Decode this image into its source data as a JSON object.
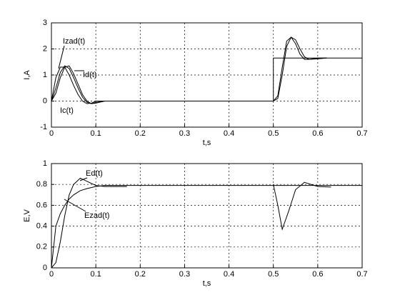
{
  "chart_data": [
    {
      "type": "line",
      "xlabel": "t,s",
      "ylabel": "I,A",
      "x": [
        0,
        0.01,
        0.02,
        0.03,
        0.04,
        0.05,
        0.06,
        0.07,
        0.08,
        0.09,
        0.1,
        0.12,
        0.17,
        0.3,
        0.5,
        0.5,
        0.51,
        0.52,
        0.53,
        0.54,
        0.55,
        0.56,
        0.57,
        0.58,
        0.6,
        0.62,
        0.7
      ],
      "series": [
        {
          "name": "Izad(t)",
          "color": "#000000",
          "values": [
            0,
            0.9,
            1.3,
            1.3,
            1.0,
            0.6,
            0.25,
            0.0,
            -0.1,
            -0.08,
            0,
            0,
            0,
            0,
            0,
            1.65,
            1.65,
            1.65,
            1.65,
            1.65,
            1.65,
            1.65,
            1.65,
            1.65,
            1.65,
            1.65,
            1.65
          ]
        },
        {
          "name": "Id(t)",
          "color": "#000000",
          "values": [
            0,
            0.5,
            1.1,
            1.35,
            1.25,
            0.9,
            0.5,
            0.15,
            -0.05,
            -0.1,
            -0.05,
            0,
            0,
            0,
            0,
            0,
            0.2,
            1.3,
            2.3,
            2.45,
            2.2,
            1.8,
            1.6,
            1.6,
            1.65,
            1.65,
            null
          ]
        },
        {
          "name": "Ic(t)",
          "color": "#000000",
          "values": [
            0,
            0.3,
            0.9,
            1.3,
            1.35,
            1.05,
            0.65,
            0.25,
            0,
            -0.1,
            -0.08,
            0,
            0,
            0,
            0,
            0,
            0.1,
            1.0,
            2.1,
            2.45,
            2.35,
            2.0,
            1.7,
            1.6,
            1.62,
            1.65,
            null
          ]
        }
      ],
      "xlim": [
        0,
        0.7
      ],
      "xticks": [
        0,
        0.1,
        0.2,
        0.3,
        0.4,
        0.5,
        0.6,
        0.7
      ],
      "ylim": [
        -1,
        3
      ],
      "yticks": [
        -1,
        0,
        1,
        2,
        3
      ],
      "grid": true
    },
    {
      "type": "line",
      "xlabel": "t,s",
      "ylabel": "E,V",
      "x": [
        0,
        0.01,
        0.02,
        0.03,
        0.04,
        0.05,
        0.065,
        0.08,
        0.1,
        0.12,
        0.17,
        0.3,
        0.5,
        0.51,
        0.52,
        0.535,
        0.55,
        0.57,
        0.6,
        0.63,
        0.7
      ],
      "series": [
        {
          "name": "Ezad(t)",
          "color": "#000000",
          "values": [
            0,
            0.4,
            0.52,
            0.6,
            0.66,
            0.7,
            0.74,
            0.76,
            0.78,
            0.79,
            0.79,
            0.79,
            0.79,
            0.79,
            0.79,
            0.79,
            0.79,
            0.79,
            0.79,
            0.79,
            0.79
          ]
        },
        {
          "name": "Ed(t)",
          "color": "#000000",
          "values": [
            0,
            0.05,
            0.25,
            0.5,
            0.7,
            0.8,
            0.86,
            0.83,
            0.79,
            0.78,
            0.78,
            null,
            0.8,
            0.6,
            0.37,
            0.55,
            0.75,
            0.82,
            0.78,
            0.775,
            null
          ]
        }
      ],
      "xlim": [
        0,
        0.7
      ],
      "xticks": [
        0,
        0.1,
        0.2,
        0.3,
        0.4,
        0.5,
        0.6,
        0.7
      ],
      "ylim": [
        0,
        1
      ],
      "yticks": [
        0,
        0.2,
        0.4,
        0.6,
        0.8,
        1
      ],
      "grid": true
    }
  ]
}
